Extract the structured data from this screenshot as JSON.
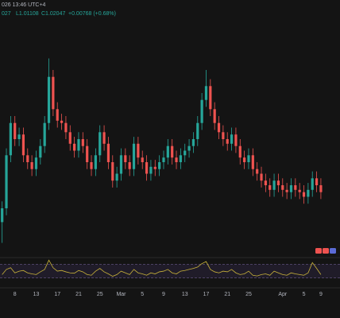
{
  "header": {
    "time": "026 13:46 UTC+4",
    "open": "027",
    "low": "L1.01108",
    "close": "C1.02047",
    "change": "+0.00768 (+0.68%)"
  },
  "chart_data": [
    {
      "type": "candlestick",
      "up_color": "#26a69a",
      "down_color": "#ef5350",
      "ylim": [
        0,
        100
      ],
      "categories": [
        null,
        null,
        null,
        "8",
        null,
        null,
        null,
        null,
        "13",
        null,
        null,
        null,
        null,
        "17",
        null,
        null,
        null,
        null,
        "21",
        null,
        null,
        null,
        null,
        "25",
        null,
        null,
        null,
        null,
        "Mar",
        null,
        null,
        null,
        null,
        "5",
        null,
        null,
        null,
        null,
        "9",
        null,
        null,
        null,
        null,
        "13",
        null,
        null,
        null,
        null,
        "17",
        null,
        null,
        null,
        null,
        "21",
        null,
        null,
        null,
        null,
        "25",
        null,
        null,
        null,
        null,
        null,
        null,
        null,
        "Apr",
        null,
        null,
        null,
        null,
        "5",
        null,
        null,
        null,
        "9"
      ],
      "open": [
        14,
        20,
        43,
        57,
        50,
        52,
        43,
        40,
        37,
        42,
        47,
        57,
        77,
        63,
        58,
        57,
        53,
        48,
        45,
        50,
        47,
        40,
        37,
        43,
        53,
        48,
        40,
        32,
        35,
        43,
        40,
        37,
        48,
        42,
        40,
        35,
        38,
        37,
        40,
        42,
        47,
        42,
        40,
        43,
        45,
        47,
        50,
        57,
        67,
        73,
        63,
        57,
        53,
        50,
        48,
        52,
        47,
        42,
        40,
        43,
        37,
        35,
        32,
        30,
        28,
        32,
        30,
        28,
        27,
        30,
        28,
        27,
        25,
        28,
        33,
        30
      ],
      "high": [
        23,
        46,
        60,
        60,
        55,
        55,
        46,
        43,
        45,
        50,
        60,
        85,
        80,
        66,
        61,
        60,
        56,
        51,
        53,
        53,
        50,
        43,
        46,
        56,
        56,
        51,
        43,
        38,
        46,
        46,
        43,
        51,
        51,
        45,
        43,
        41,
        41,
        43,
        45,
        50,
        50,
        45,
        46,
        48,
        50,
        53,
        60,
        70,
        80,
        76,
        66,
        60,
        56,
        53,
        55,
        55,
        50,
        45,
        46,
        46,
        40,
        38,
        35,
        33,
        35,
        35,
        33,
        31,
        33,
        33,
        31,
        30,
        31,
        36,
        36,
        33
      ],
      "low": [
        5,
        17,
        40,
        47,
        47,
        40,
        37,
        34,
        34,
        39,
        44,
        54,
        60,
        55,
        54,
        50,
        45,
        42,
        42,
        44,
        37,
        34,
        34,
        40,
        45,
        37,
        29,
        29,
        32,
        37,
        34,
        34,
        39,
        37,
        32,
        32,
        34,
        34,
        37,
        39,
        39,
        37,
        37,
        40,
        42,
        44,
        47,
        54,
        64,
        60,
        54,
        50,
        47,
        45,
        45,
        44,
        39,
        37,
        37,
        34,
        32,
        29,
        27,
        25,
        25,
        27,
        25,
        24,
        24,
        25,
        24,
        22,
        22,
        25,
        27,
        24
      ],
      "close": [
        20,
        43,
        57,
        50,
        52,
        43,
        40,
        37,
        42,
        47,
        57,
        77,
        63,
        58,
        57,
        53,
        48,
        45,
        50,
        47,
        40,
        37,
        43,
        53,
        48,
        40,
        32,
        35,
        43,
        40,
        37,
        48,
        42,
        40,
        35,
        38,
        37,
        40,
        42,
        47,
        42,
        40,
        43,
        45,
        47,
        50,
        57,
        67,
        73,
        63,
        57,
        53,
        50,
        48,
        52,
        47,
        42,
        40,
        43,
        37,
        35,
        32,
        30,
        28,
        32,
        30,
        28,
        27,
        30,
        28,
        27,
        25,
        28,
        33,
        30,
        27
      ]
    },
    {
      "type": "line",
      "color": "#c9b33a",
      "ylim": [
        20,
        85
      ],
      "levels": [
        30,
        70
      ],
      "values": [
        40,
        55,
        60,
        45,
        50,
        52,
        45,
        42,
        40,
        48,
        55,
        82,
        60,
        50,
        52,
        48,
        45,
        44,
        52,
        48,
        40,
        38,
        50,
        58,
        48,
        42,
        35,
        40,
        50,
        45,
        40,
        55,
        45,
        42,
        38,
        45,
        42,
        48,
        50,
        55,
        45,
        42,
        50,
        52,
        55,
        58,
        62,
        72,
        78,
        55,
        48,
        45,
        50,
        48,
        55,
        45,
        40,
        42,
        50,
        38,
        36,
        40,
        42,
        38,
        50,
        45,
        40,
        38,
        45,
        42,
        40,
        38,
        45,
        75,
        58,
        40
      ]
    }
  ]
}
